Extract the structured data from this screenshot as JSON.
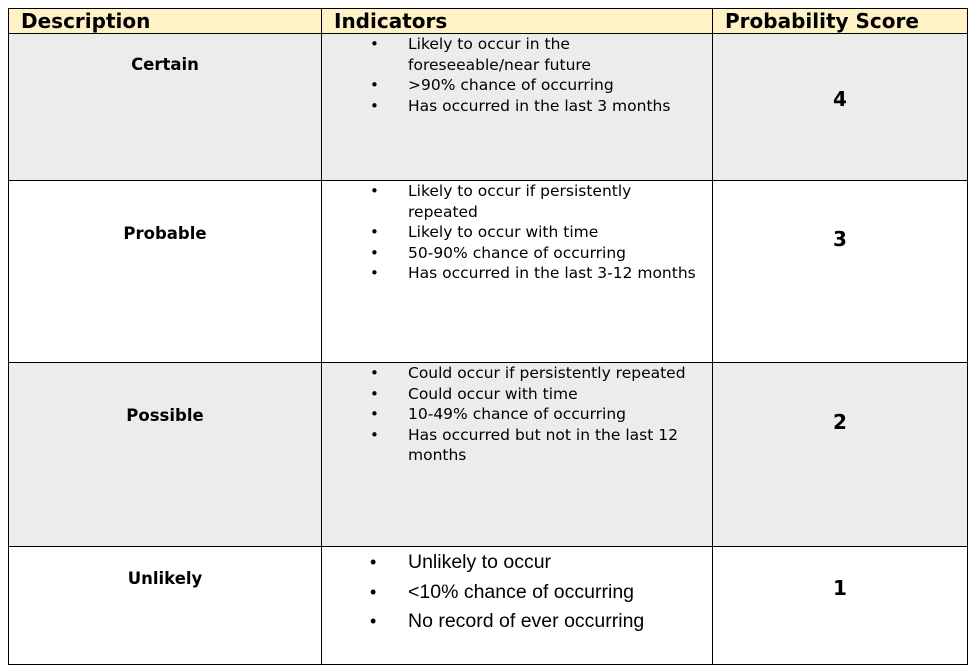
{
  "headers": {
    "description": "Description",
    "indicators": "Indicators",
    "score": "Probability Score"
  },
  "rows": [
    {
      "description": "Certain",
      "indicators": [
        "Likely to occur in the foreseeable/near future",
        ">90% chance of occurring",
        "Has occurred in the last 3 months"
      ],
      "score": "4"
    },
    {
      "description": "Probable",
      "indicators": [
        "Likely to occur if persistently repeated",
        "Likely to occur with time",
        "50-90% chance of occurring",
        "Has occurred in the last 3-12 months"
      ],
      "score": "3"
    },
    {
      "description": "Possible",
      "indicators": [
        "Could occur if persistently repeated",
        "Could occur with time",
        "10-49% chance of occurring",
        "Has occurred but not in the last 12 months"
      ],
      "score": "2"
    },
    {
      "description": "Unlikely",
      "indicators": [
        "Unlikely to occur",
        "<10% chance of occurring",
        "No record of ever occurring"
      ],
      "score": "1"
    }
  ],
  "colors": {
    "header_bg": "#fff2c7",
    "shaded_row_bg": "#ececec",
    "border": "#000000"
  }
}
